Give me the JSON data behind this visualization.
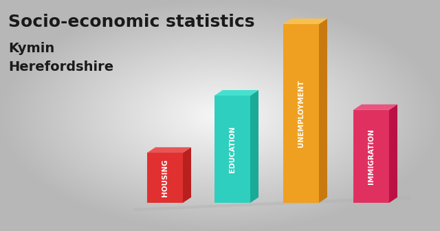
{
  "title_line1": "Socio-economic statistics",
  "title_line2": "Kymin",
  "title_line3": "Herefordshire",
  "categories": [
    "HOUSING",
    "EDUCATION",
    "UNEMPLOYMENT",
    "IMMIGRATION"
  ],
  "values": [
    0.28,
    0.6,
    1.0,
    0.52
  ],
  "bar_colors_front": [
    "#e03030",
    "#2ecfbe",
    "#f0a020",
    "#e03060"
  ],
  "bar_colors_side": [
    "#b82020",
    "#1aaa98",
    "#c87a10",
    "#bb1045"
  ],
  "bar_colors_top": [
    "#e85555",
    "#45e0d0",
    "#f8c050",
    "#e85580"
  ],
  "background_color": "#c8c8c8",
  "title_fontsize": 18,
  "subtitle_fontsize": 14,
  "text_color": "#1a1a1a"
}
